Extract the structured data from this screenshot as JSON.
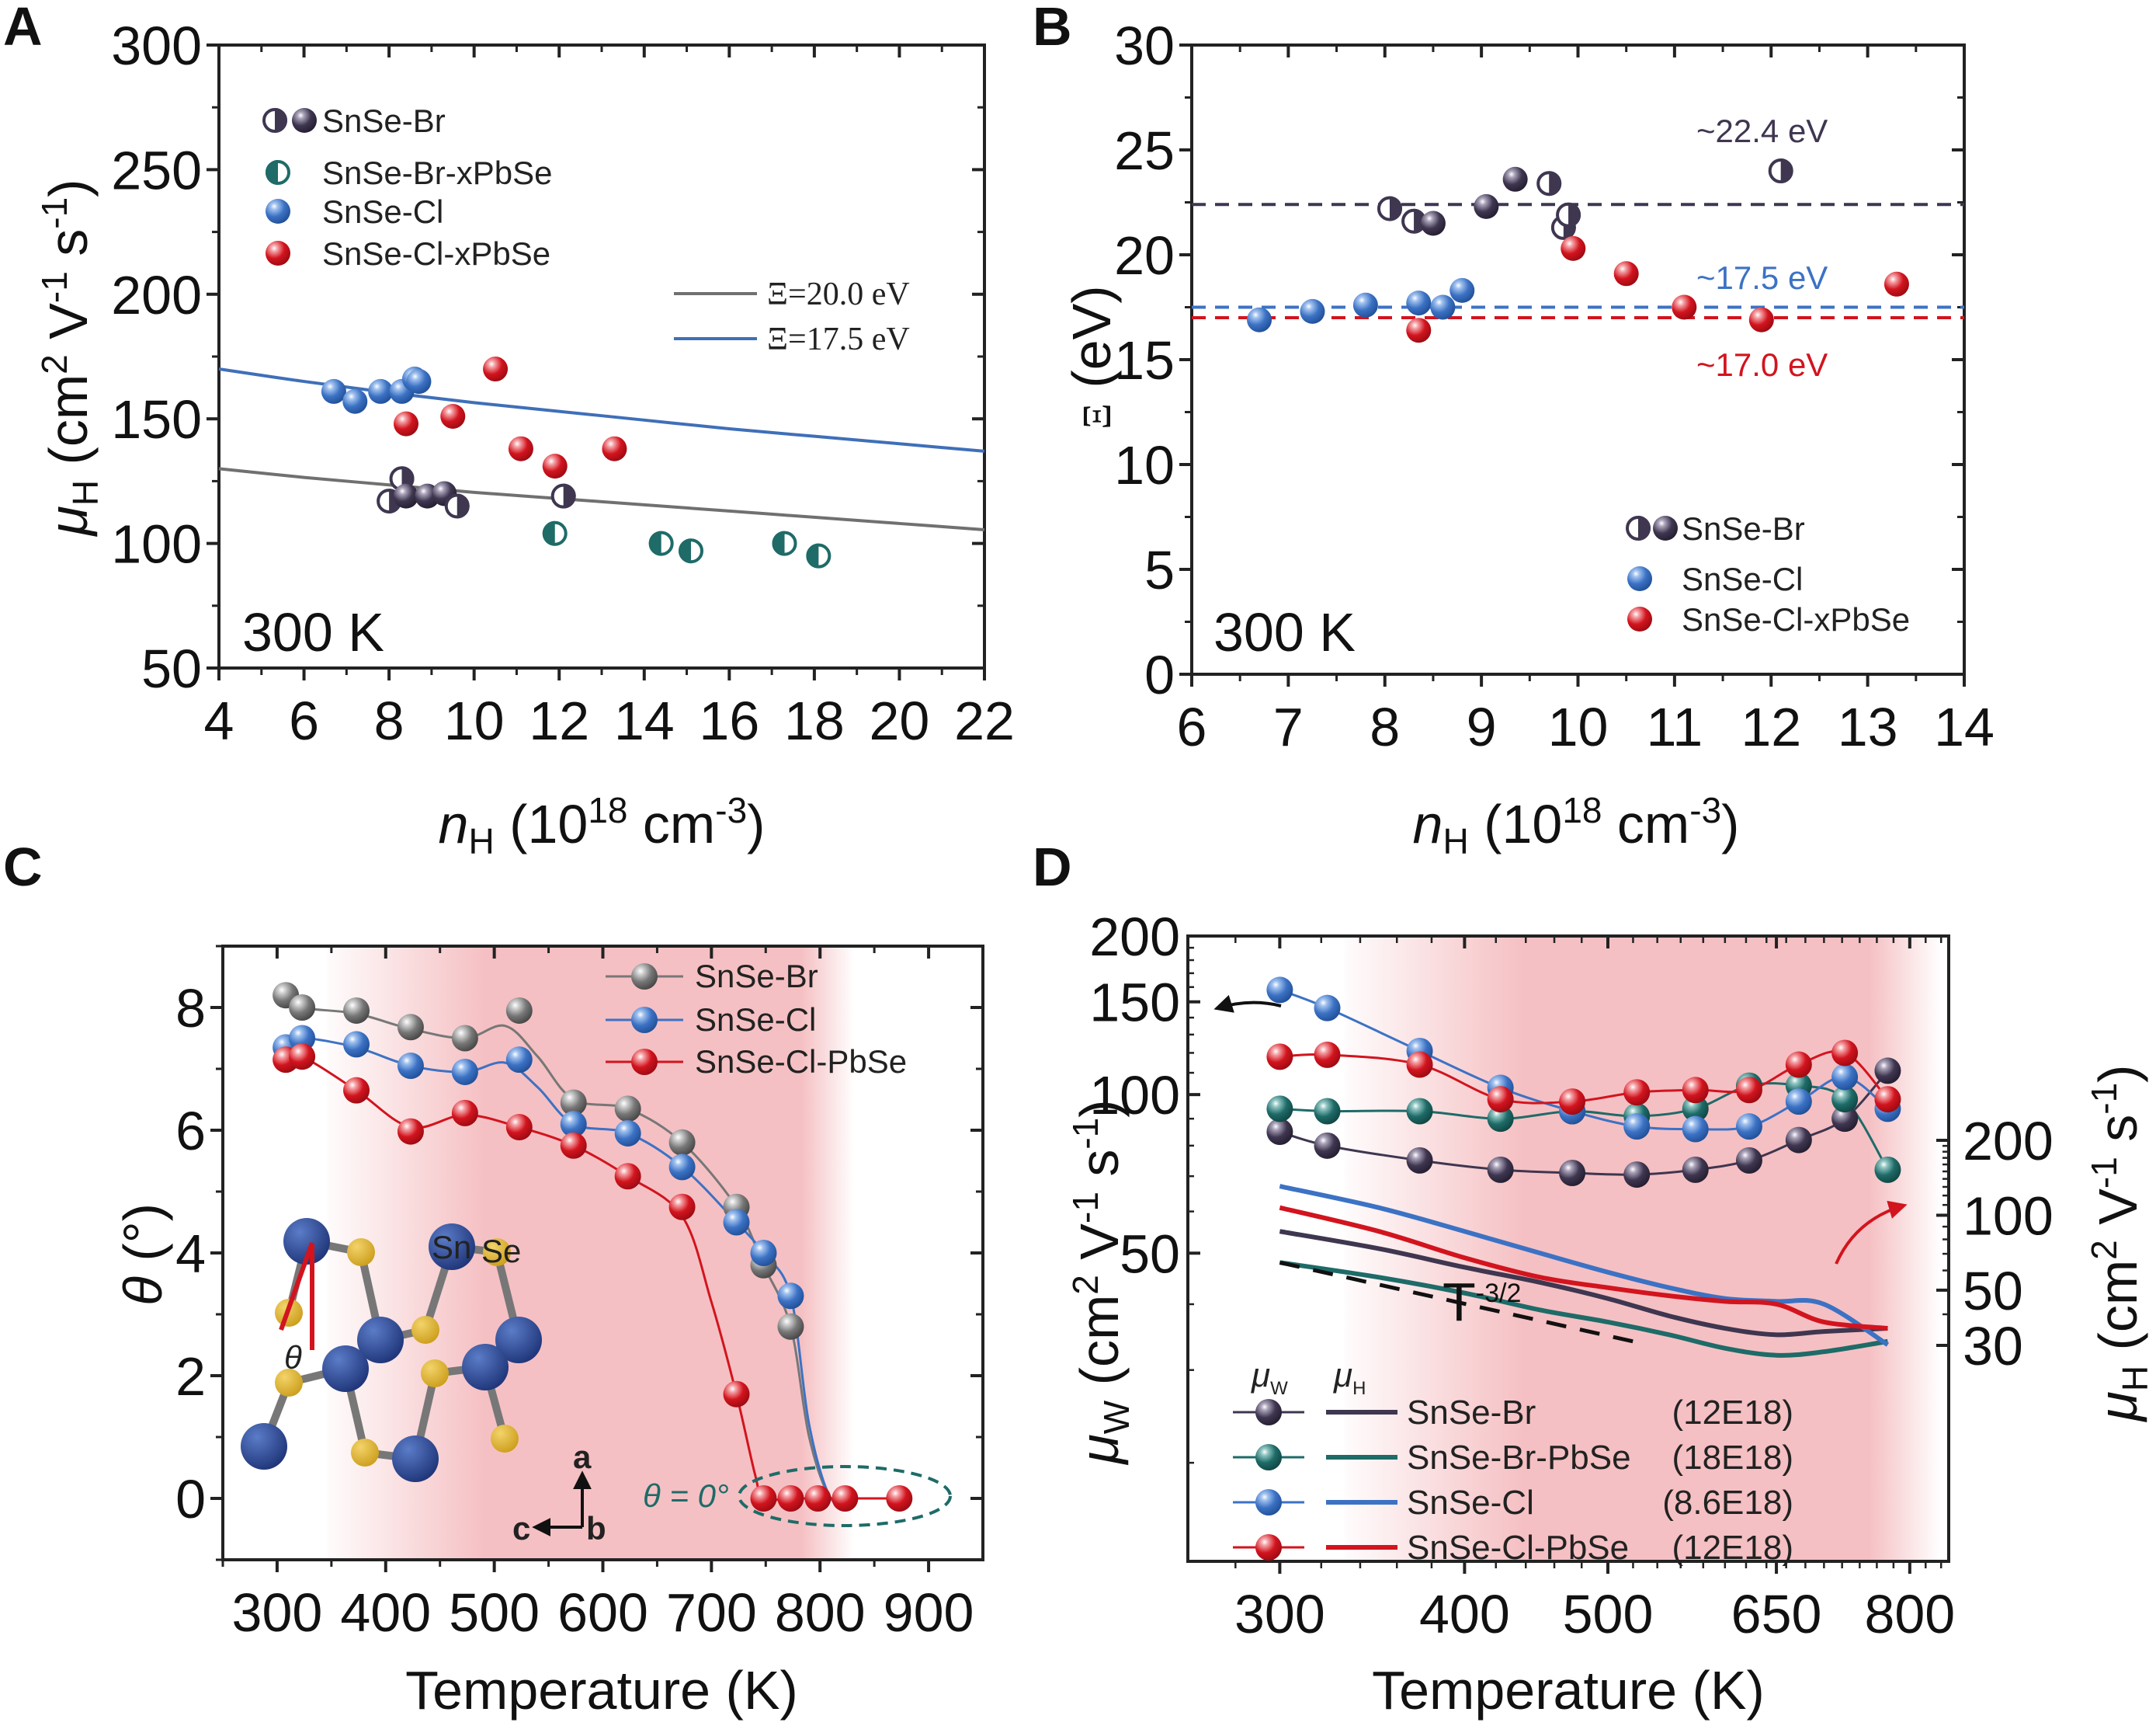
{
  "panel_labels": [
    "A",
    "B",
    "C",
    "D"
  ],
  "chart_data": [
    {
      "panel": "A",
      "type": "scatter",
      "xlabel": "n_H (10^18 cm^-3)",
      "xlabel_main": "n",
      "xlabel_sub": "H",
      "xlabel_rest": " (10",
      "xlabel_sup": "18",
      "xlabel_unit": " cm",
      "xlabel_sup2": "-3",
      "xlabel_close": ")",
      "ylabel": "μ_H (cm² V⁻¹ s⁻¹)",
      "ylabel_mu": "μ",
      "ylabel_sub": "H",
      "ylabel_rest": " (cm",
      "ylabel_sup": "2",
      "ylabel_v": " V",
      "ylabel_sup2": "-1",
      "ylabel_s": " s",
      "ylabel_sup3": "-1",
      "ylabel_close": ")",
      "xlim": [
        4,
        22
      ],
      "ylim": [
        50,
        300
      ],
      "xticks": [
        4,
        6,
        8,
        10,
        12,
        14,
        16,
        18,
        20,
        22
      ],
      "yticks": [
        50,
        100,
        150,
        200,
        250,
        300
      ],
      "annotation": "300 K",
      "legend": {
        "placement": "top-left",
        "entries": [
          "SnSe-Br",
          "SnSe-Br-xPbSe",
          "SnSe-Cl",
          "SnSe-Cl-xPbSe"
        ]
      },
      "lines_legend": [
        "Ξ=20.0 eV",
        "Ξ=17.5 eV"
      ],
      "lines": [
        {
          "name": "Ξ=20.0 eV",
          "color": "#707070",
          "x": [
            4,
            6,
            8,
            10,
            12,
            14,
            16,
            18,
            20,
            22
          ],
          "y": [
            130,
            126.5,
            123.5,
            120.5,
            118,
            115.5,
            113,
            110.5,
            108,
            105.5
          ]
        },
        {
          "name": "Ξ=17.5 eV",
          "color": "#3f6fb8",
          "x": [
            4,
            6,
            8,
            10,
            12,
            14,
            16,
            18,
            20,
            22
          ],
          "y": [
            170,
            165,
            160.5,
            156.5,
            153,
            149.5,
            146,
            143,
            140,
            137
          ]
        }
      ],
      "series": [
        {
          "name": "SnSe-Br",
          "color": "#3f3650",
          "marker": "mixed",
          "points": [
            [
              8.0,
              117,
              "half"
            ],
            [
              8.3,
              126,
              "half"
            ],
            [
              8.4,
              119,
              "full"
            ],
            [
              8.9,
              119,
              "full"
            ],
            [
              9.3,
              120,
              "full"
            ],
            [
              9.6,
              115,
              "half"
            ],
            [
              12.1,
              119,
              "half"
            ]
          ]
        },
        {
          "name": "SnSe-Br-xPbSe",
          "color": "#1e6b68",
          "marker": "half-teal",
          "points": [
            [
              11.9,
              104
            ],
            [
              14.4,
              100
            ],
            [
              15.1,
              97
            ],
            [
              17.3,
              100
            ],
            [
              18.1,
              95
            ]
          ]
        },
        {
          "name": "SnSe-Cl",
          "color": "#3c72c4",
          "marker": "ball",
          "points": [
            [
              6.7,
              161
            ],
            [
              7.2,
              157
            ],
            [
              7.8,
              161
            ],
            [
              8.3,
              161
            ],
            [
              8.6,
              166
            ],
            [
              8.7,
              165
            ]
          ]
        },
        {
          "name": "SnSe-Cl-xPbSe",
          "color": "#d2141e",
          "marker": "ball",
          "points": [
            [
              8.4,
              148
            ],
            [
              9.5,
              151
            ],
            [
              10.5,
              170
            ],
            [
              11.1,
              138
            ],
            [
              11.9,
              131
            ],
            [
              13.3,
              138
            ]
          ]
        }
      ]
    },
    {
      "panel": "B",
      "type": "scatter",
      "ylabel_symbol": "Ξ",
      "ylabel_unit": " (eV)",
      "xlabel": "n_H (10^18 cm^-3)",
      "xlim": [
        6,
        14
      ],
      "ylim": [
        0,
        30
      ],
      "xticks": [
        6,
        7,
        8,
        9,
        10,
        11,
        12,
        13,
        14
      ],
      "yticks": [
        0,
        5,
        10,
        15,
        20,
        25,
        30
      ],
      "annotation": "300 K",
      "reference_lines": [
        {
          "label": "~22.4 eV",
          "value": 22.4,
          "color": "#3f3650"
        },
        {
          "label": "~17.5 eV",
          "value": 17.5,
          "color": "#3c72c4"
        },
        {
          "label": "~17.0 eV",
          "value": 17.0,
          "color": "#d2141e"
        }
      ],
      "legend": {
        "placement": "bottom-right",
        "entries": [
          "SnSe-Br",
          "SnSe-Cl",
          "SnSe-Cl-xPbSe"
        ]
      },
      "series": [
        {
          "name": "SnSe-Br",
          "color": "#3f3650",
          "points": [
            [
              8.05,
              22.2,
              "half"
            ],
            [
              8.3,
              21.6,
              "half"
            ],
            [
              8.5,
              21.5,
              "full"
            ],
            [
              9.05,
              22.3,
              "full"
            ],
            [
              9.35,
              23.6,
              "full"
            ],
            [
              9.7,
              23.4,
              "half"
            ],
            [
              9.85,
              21.3,
              "half"
            ],
            [
              9.9,
              21.9,
              "half"
            ],
            [
              12.1,
              24.0,
              "half"
            ]
          ]
        },
        {
          "name": "SnSe-Cl",
          "color": "#3c72c4",
          "points": [
            [
              6.7,
              16.9
            ],
            [
              7.25,
              17.3
            ],
            [
              7.8,
              17.6
            ],
            [
              8.35,
              17.7
            ],
            [
              8.6,
              17.5
            ],
            [
              8.8,
              18.3
            ]
          ]
        },
        {
          "name": "SnSe-Cl-xPbSe",
          "color": "#d2141e",
          "points": [
            [
              8.35,
              16.4
            ],
            [
              9.95,
              20.3
            ],
            [
              10.5,
              19.1
            ],
            [
              11.1,
              17.5
            ],
            [
              11.9,
              16.9
            ],
            [
              13.3,
              18.6
            ]
          ]
        }
      ]
    },
    {
      "panel": "C",
      "type": "line",
      "xlabel": "Temperature (K)",
      "ylabel_symbol": "θ",
      "ylabel_unit": " (°)",
      "xlim": [
        250,
        950
      ],
      "ylim": [
        -1,
        9
      ],
      "xticks": [
        300,
        400,
        500,
        600,
        700,
        800,
        900
      ],
      "yticks": [
        0,
        2,
        4,
        6,
        8
      ],
      "shaded_range": [
        410,
        810
      ],
      "legend": {
        "placement": "top-right",
        "entries": [
          "SnSe-Br",
          "SnSe-Cl",
          "SnSe-Cl-PbSe"
        ]
      },
      "annotation": "θ = 0°",
      "inset_labels": {
        "sn": "Sn",
        "se": "Se",
        "theta": "θ",
        "axis_a": "a",
        "axis_b": "b",
        "axis_c": "c"
      },
      "series": [
        {
          "name": "SnSe-Br",
          "color": "#777777",
          "x": [
            308,
            323,
            373,
            423,
            473,
            523,
            573,
            623,
            673,
            723,
            748,
            773
          ],
          "y": [
            8.2,
            8.0,
            7.95,
            7.68,
            7.5,
            7.95,
            6.45,
            6.35,
            5.8,
            4.75,
            3.8,
            2.8
          ],
          "curve_x": [
            308,
            323,
            373,
            423,
            473,
            510,
            540,
            573,
            623,
            673,
            723,
            748,
            773,
            790,
            810,
            830
          ],
          "curve_y": [
            8.2,
            8.0,
            7.9,
            7.65,
            7.5,
            7.7,
            7.2,
            6.5,
            6.35,
            5.8,
            4.75,
            3.8,
            2.8,
            1.0,
            0.0,
            0.0
          ]
        },
        {
          "name": "SnSe-Cl",
          "color": "#3c72c4",
          "x": [
            308,
            323,
            373,
            423,
            473,
            523,
            573,
            623,
            673,
            723,
            748,
            773
          ],
          "y": [
            7.35,
            7.5,
            7.4,
            7.05,
            6.95,
            7.15,
            6.1,
            5.95,
            5.4,
            4.5,
            4.0,
            3.3
          ],
          "curve_x": [
            308,
            323,
            373,
            423,
            473,
            510,
            540,
            573,
            623,
            673,
            723,
            748,
            773,
            790,
            810,
            830
          ],
          "curve_y": [
            7.35,
            7.5,
            7.35,
            7.05,
            6.95,
            7.1,
            6.7,
            6.1,
            5.95,
            5.4,
            4.5,
            4.0,
            3.3,
            1.2,
            0.0,
            0.0
          ]
        },
        {
          "name": "SnSe-Cl-PbSe",
          "color": "#d2141e",
          "x": [
            308,
            323,
            373,
            423,
            473,
            523,
            573,
            623,
            673,
            723,
            748,
            773,
            798,
            823,
            873
          ],
          "y": [
            7.15,
            7.2,
            6.65,
            5.98,
            6.28,
            6.05,
            5.75,
            5.25,
            4.75,
            1.7,
            0.0,
            0.0,
            0.0,
            0.0,
            0.0
          ],
          "curve_x": [
            308,
            323,
            373,
            423,
            473,
            523,
            573,
            623,
            673,
            700,
            723,
            740,
            748,
            773,
            798,
            823,
            873
          ],
          "curve_y": [
            7.15,
            7.2,
            6.65,
            6.05,
            6.25,
            6.05,
            5.75,
            5.25,
            4.6,
            3.2,
            1.7,
            0.4,
            0.0,
            0.0,
            0.0,
            0.0,
            0.0
          ]
        }
      ]
    },
    {
      "panel": "D",
      "type": "line",
      "xlabel": "Temperature (K)",
      "xscale": "log",
      "xlim": [
        260,
        850
      ],
      "xticks": [
        300,
        400,
        500,
        650,
        800
      ],
      "left_axis": {
        "label_mu": "μ",
        "label_sub": "W",
        "label_rest": " (cm",
        "label_sup": "2",
        "label_v": " V",
        "label_sup2": "-1",
        "label_s": " s",
        "label_sup3": "-1",
        "label_close": ")",
        "scale": "log",
        "ylim": [
          13,
          200
        ],
        "yticks": [
          50,
          100,
          150,
          200
        ]
      },
      "right_axis": {
        "color": "#d2141e",
        "label_mu": "μ",
        "label_sub": "H",
        "label_rest": " (cm",
        "label_sup": "2",
        "label_v": " V",
        "label_sup2": "-1",
        "label_s": " s",
        "label_sup3": "-1",
        "label_close": ")",
        "scale": "log",
        "yticks": [
          30,
          50,
          100,
          200
        ]
      },
      "shaded_range": [
        370,
        800
      ],
      "annotation": "T^-3/2",
      "annotation_base": "T",
      "annotation_sup": "-3/2",
      "legend": {
        "placement": "bottom-left",
        "header_w": "μ",
        "header_w_sub": "W",
        "header_h": "μ",
        "header_h_sub": "H",
        "entries": [
          {
            "name": "SnSe-Br",
            "density": "(12E18)"
          },
          {
            "name": "SnSe-Br-PbSe",
            "density": "(18E18)"
          },
          {
            "name": "SnSe-Cl",
            "density": "(8.6E18)"
          },
          {
            "name": "SnSe-Cl-PbSe",
            "density": "(12E18)"
          }
        ]
      },
      "series_mu_w": [
        {
          "name": "SnSe-Br",
          "color": "#3f3650",
          "x": [
            300,
            323,
            373,
            423,
            473,
            523,
            573,
            623,
            673,
            723,
            773
          ],
          "y": [
            85,
            80,
            75,
            72,
            71,
            70.5,
            72,
            75,
            82,
            90,
            111
          ]
        },
        {
          "name": "SnSe-Br-PbSe",
          "color": "#1e6b68",
          "x": [
            300,
            323,
            373,
            423,
            473,
            523,
            573,
            623,
            673,
            723,
            773
          ],
          "y": [
            94,
            93,
            93,
            90,
            93,
            91,
            94,
            104,
            104,
            98,
            72
          ]
        },
        {
          "name": "SnSe-Cl",
          "color": "#3c72c4",
          "x": [
            300,
            323,
            373,
            423,
            473,
            523,
            573,
            623,
            673,
            723,
            773
          ],
          "y": [
            158,
            146,
            121,
            103,
            93,
            87,
            86,
            87,
            97,
            108,
            94
          ]
        },
        {
          "name": "SnSe-Cl-PbSe",
          "color": "#d2141e",
          "x": [
            300,
            323,
            373,
            423,
            473,
            523,
            573,
            623,
            673,
            723,
            773
          ],
          "y": [
            118,
            119,
            114,
            98,
            97,
            101,
            102,
            102,
            114,
            120,
            98
          ]
        }
      ],
      "series_mu_h": [
        {
          "name": "SnSe-Br",
          "color": "#3f3650",
          "x": [
            300,
            350,
            400,
            450,
            500,
            550,
            600,
            650,
            700,
            773
          ],
          "y": [
            55,
            51,
            47,
            44,
            41,
            38,
            36,
            35,
            35.5,
            36
          ]
        },
        {
          "name": "SnSe-Br-PbSe",
          "color": "#1e6b68",
          "x": [
            300,
            350,
            400,
            450,
            500,
            550,
            600,
            650,
            700,
            773
          ],
          "y": [
            48,
            45,
            42,
            39,
            37,
            35,
            33,
            32,
            32.5,
            34
          ]
        },
        {
          "name": "SnSe-Cl",
          "color": "#3c72c4",
          "x": [
            300,
            350,
            400,
            450,
            500,
            550,
            600,
            650,
            700,
            773
          ],
          "y": [
            67,
            61,
            55,
            50,
            46,
            43,
            41,
            40.5,
            40,
            33.5
          ]
        },
        {
          "name": "SnSe-Cl-PbSe",
          "color": "#d2141e",
          "x": [
            300,
            350,
            400,
            450,
            500,
            550,
            600,
            650,
            700,
            773
          ],
          "y": [
            61,
            55,
            49,
            45,
            43,
            41.5,
            40.5,
            40,
            37,
            36
          ]
        }
      ],
      "reference_line": {
        "name": "T^-3/2",
        "x": [
          300,
          520
        ],
        "y": [
          48,
          34
        ]
      }
    }
  ]
}
